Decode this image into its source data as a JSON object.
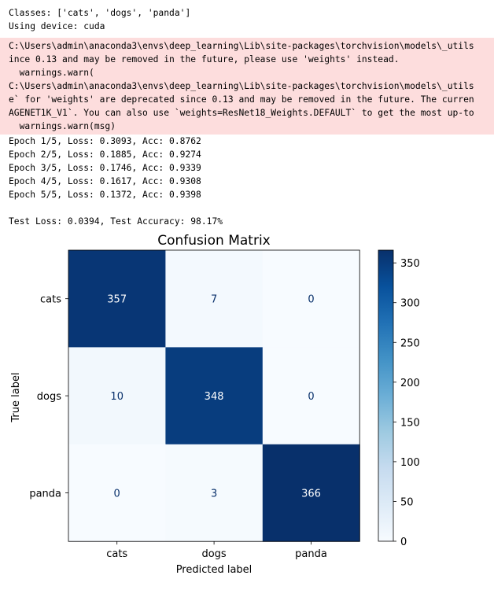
{
  "stdout_top": [
    "Classes: ['cats', 'dogs', 'panda']",
    "Using device: cuda"
  ],
  "stderr_lines": [
    "C:\\Users\\admin\\anaconda3\\envs\\deep_learning\\Lib\\site-packages\\torchvision\\models\\_utils",
    "ince 0.13 and may be removed in the future, please use 'weights' instead.",
    "  warnings.warn(",
    "C:\\Users\\admin\\anaconda3\\envs\\deep_learning\\Lib\\site-packages\\torchvision\\models\\_utils",
    "e` for 'weights' are deprecated since 0.13 and may be removed in the future. The curren",
    "AGENET1K_V1`. You can also use `weights=ResNet18_Weights.DEFAULT` to get the most up-to",
    "  warnings.warn(msg)"
  ],
  "epochs": [
    "Epoch 1/5, Loss: 0.3093, Acc: 0.8762",
    "Epoch 2/5, Loss: 0.1885, Acc: 0.9274",
    "Epoch 3/5, Loss: 0.1746, Acc: 0.9339",
    "Epoch 4/5, Loss: 0.1617, Acc: 0.9308",
    "Epoch 5/5, Loss: 0.1372, Acc: 0.9398"
  ],
  "test_result": "Test Loss: 0.0394, Test Accuracy: 98.17%",
  "chart_data": {
    "type": "heatmap",
    "title": "Confusion Matrix",
    "xlabel": "Predicted label",
    "ylabel": "True label",
    "x_categories": [
      "cats",
      "dogs",
      "panda"
    ],
    "y_categories": [
      "cats",
      "dogs",
      "panda"
    ],
    "values": [
      [
        357,
        7,
        0
      ],
      [
        10,
        348,
        0
      ],
      [
        0,
        3,
        366
      ]
    ],
    "colormap": "Blues",
    "colorbar_range": [
      0,
      366
    ],
    "colorbar_ticks": [
      0,
      50,
      100,
      150,
      200,
      250,
      300,
      350
    ],
    "light_text_color": "#08306b",
    "dark_text_color": "#ffffff"
  }
}
